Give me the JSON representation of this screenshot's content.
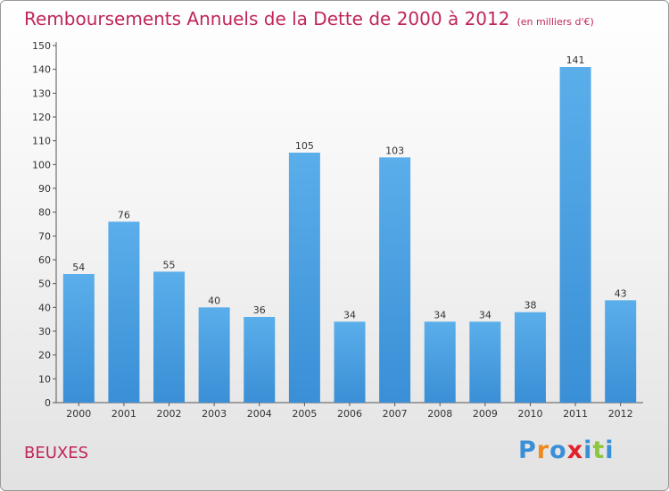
{
  "chart_data": {
    "type": "bar",
    "title": "Remboursements Annuels de la Dette de 2000 à 2012",
    "unit": "(en milliers d'€)",
    "categories": [
      "2000",
      "2001",
      "2002",
      "2003",
      "2004",
      "2005",
      "2006",
      "2007",
      "2008",
      "2009",
      "2010",
      "2011",
      "2012"
    ],
    "values": [
      54,
      76,
      55,
      40,
      36,
      105,
      34,
      103,
      34,
      34,
      38,
      141,
      43
    ],
    "ylim": [
      0,
      150
    ],
    "yticks": [
      0,
      10,
      20,
      30,
      40,
      50,
      60,
      70,
      80,
      90,
      100,
      110,
      120,
      130,
      140,
      150
    ],
    "xlabel": "",
    "ylabel": "",
    "grid": false,
    "bar_color": "#3a8fd6",
    "title_color": "#c0255c"
  },
  "place_name": "BEUXES",
  "logo": {
    "letters": [
      "P",
      "r",
      "o",
      "x",
      "i",
      "t",
      "i"
    ],
    "colors": [
      "#3a8fd6",
      "#f08a1c",
      "#3a8fd6",
      "#e2202a",
      "#3a8fd6",
      "#8cc63e",
      "#3a8fd6"
    ]
  }
}
